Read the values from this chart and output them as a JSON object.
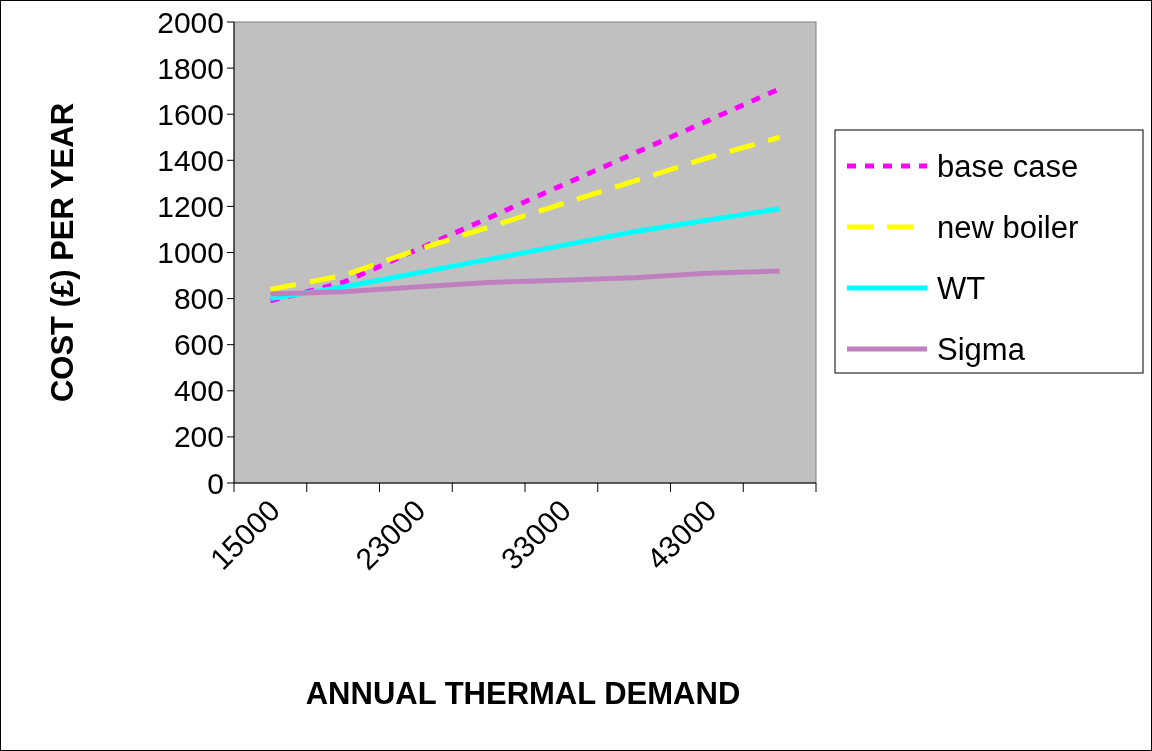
{
  "chart_data": {
    "type": "line",
    "xlabel": "ANNUAL THERMAL DEMAND",
    "ylabel": "COST (£) PER YEAR",
    "categories": [
      "15000",
      null,
      "23000",
      null,
      "33000",
      null,
      "43000",
      null
    ],
    "ylim": [
      0,
      2000
    ],
    "yticks": [
      0,
      200,
      400,
      600,
      800,
      1000,
      1200,
      1400,
      1600,
      1800,
      2000
    ],
    "legend": "right",
    "grid": false,
    "marker": "none",
    "series": [
      {
        "name": "base case",
        "color": "#ff00ff",
        "line_style": "dotted",
        "values": [
          790,
          870,
          1010,
          1150,
          1290,
          1430,
          1570,
          1710
        ]
      },
      {
        "name": "new boiler",
        "color": "#ffff00",
        "line_style": "dashed",
        "values": [
          840,
          900,
          1010,
          1110,
          1210,
          1310,
          1410,
          1500
        ]
      },
      {
        "name": "WT",
        "color": "#00ffff",
        "line_style": "solid",
        "values": [
          800,
          850,
          910,
          970,
          1030,
          1090,
          1140,
          1190
        ]
      },
      {
        "name": "Sigma",
        "color": "#c080c0",
        "line_style": "solid",
        "values": [
          820,
          830,
          850,
          870,
          880,
          890,
          910,
          920
        ]
      }
    ]
  }
}
